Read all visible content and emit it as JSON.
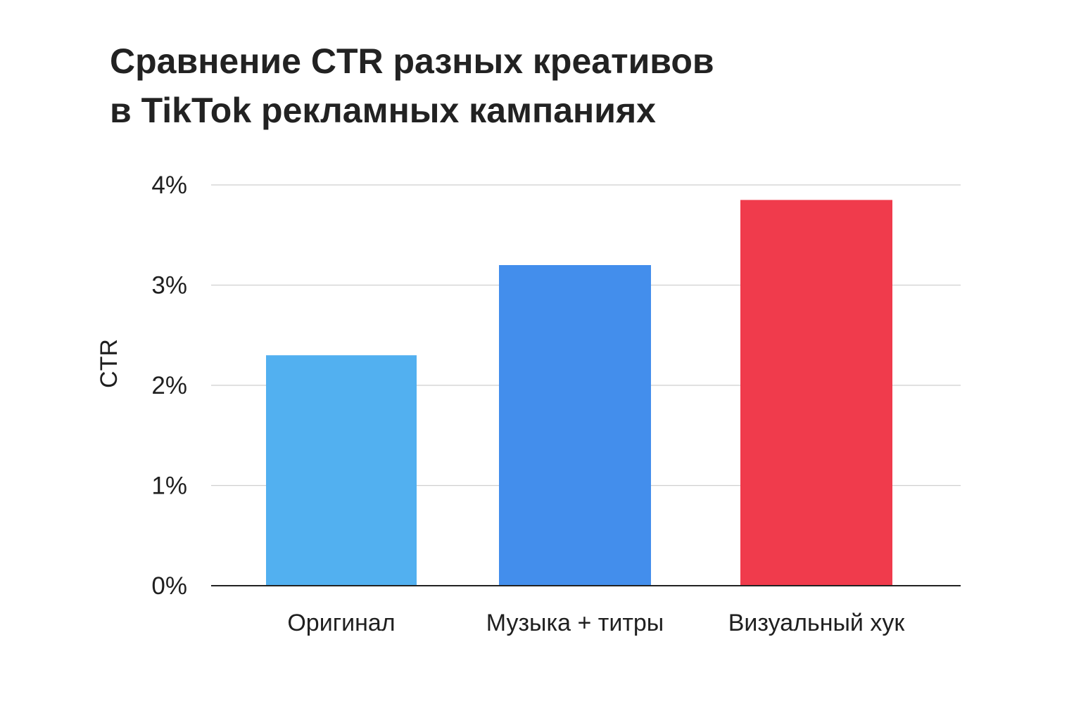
{
  "chart_data": {
    "type": "bar",
    "title_lines": [
      "Сравнение CTR разных креативов",
      "в TikTok рекламных кампаниях"
    ],
    "ylabel": "CTR",
    "xlabel": "",
    "categories": [
      "Оригинал",
      "Музыка + титры",
      "Визуальный хук"
    ],
    "values": [
      2.3,
      3.2,
      3.85
    ],
    "colors": [
      "#52b0f0",
      "#438eec",
      "#f03b4c"
    ],
    "ylim": [
      0,
      4
    ],
    "yticks": [
      0,
      1,
      2,
      3,
      4
    ],
    "ytick_labels": [
      "0%",
      "1%",
      "2%",
      "3%",
      "4%"
    ],
    "grid": true,
    "legend": "none"
  }
}
